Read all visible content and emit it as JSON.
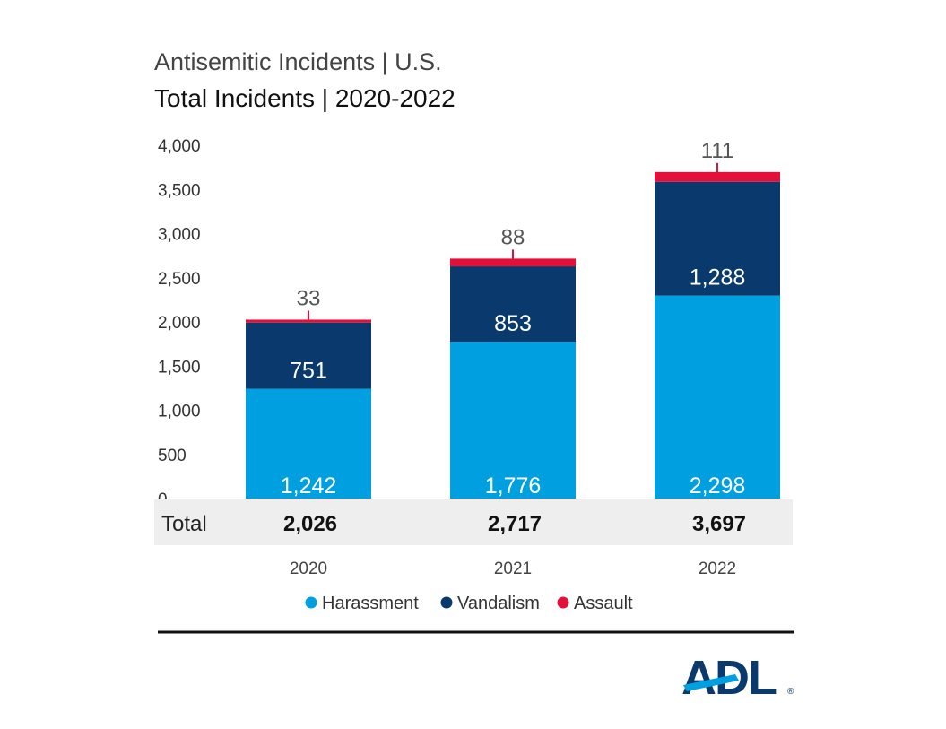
{
  "chart_data": {
    "type": "bar",
    "stacked": true,
    "title": "Antisemitic Incidents | U.S.",
    "subtitle": "Total Incidents | 2020-2022",
    "categories": [
      "2020",
      "2021",
      "2022"
    ],
    "series": [
      {
        "name": "Harassment",
        "values": [
          1242,
          1776,
          2298
        ],
        "labels": [
          "1,242",
          "1,776",
          "2,298"
        ],
        "color": "#009FDF"
      },
      {
        "name": "Vandalism",
        "values": [
          751,
          853,
          1288
        ],
        "labels": [
          "751",
          "853",
          "1,288"
        ],
        "color": "#0A3A6D"
      },
      {
        "name": "Assault",
        "values": [
          33,
          88,
          111
        ],
        "labels": [
          "33",
          "88",
          "111"
        ],
        "color": "#E2103A"
      }
    ],
    "totals": {
      "label": "Total",
      "values": [
        "2,026",
        "2,717",
        "3,697"
      ]
    },
    "ylim": [
      0,
      4000
    ],
    "yticks": [
      "0",
      "500",
      "1,000",
      "1,500",
      "2,000",
      "2,500",
      "3,000",
      "3,500",
      "4,000"
    ],
    "grid": false,
    "legend_position": "bottom"
  },
  "logo": {
    "text": "ADL",
    "mark": "®"
  }
}
